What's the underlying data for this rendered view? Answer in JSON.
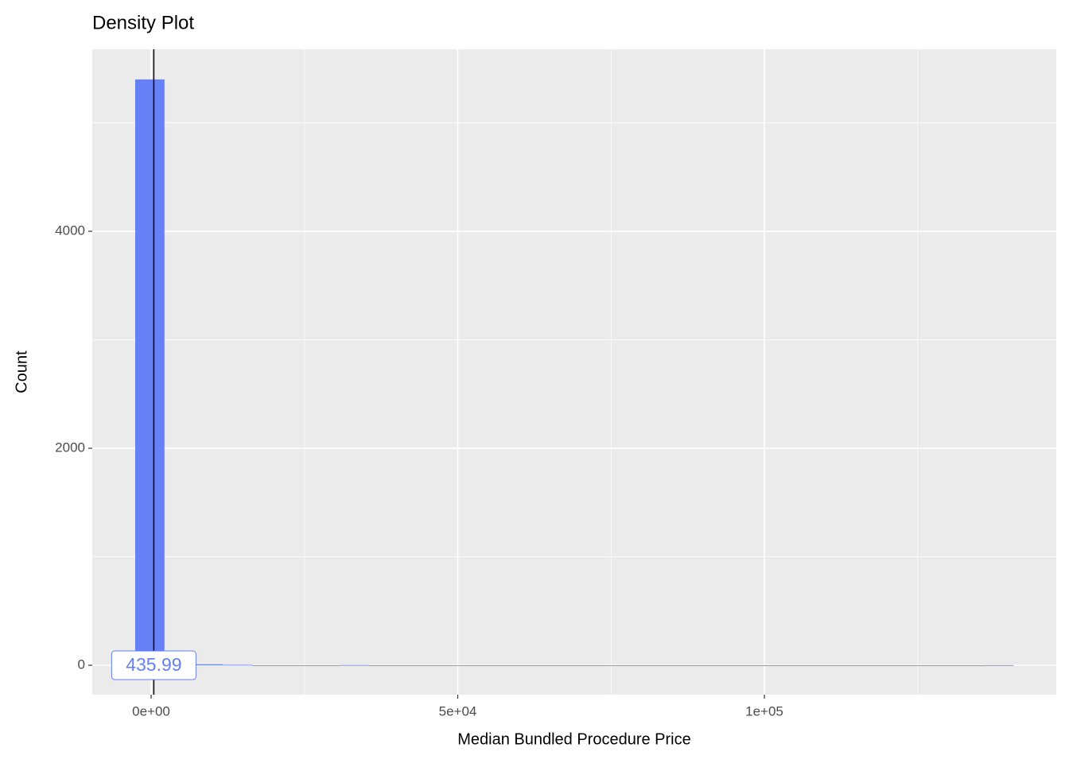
{
  "chart_data": {
    "type": "histogram",
    "title": "Density Plot",
    "x_label": "Median Bundled Procedure Price",
    "y_label": "Count",
    "bins": [
      -2600,
      2175,
      6950,
      11725,
      16500,
      21275,
      26050,
      30825,
      35600,
      40375,
      45150,
      49925,
      54700,
      59475,
      64250,
      69025,
      73800,
      78575,
      83350,
      88125,
      92900,
      97675,
      102450,
      107225,
      112000,
      116775,
      121550,
      126325,
      131100,
      135875,
      140650
    ],
    "values": [
      5400,
      10,
      9,
      4,
      0,
      0,
      0,
      2,
      0,
      0,
      0,
      0,
      0,
      0,
      0,
      0,
      0,
      0,
      0,
      0,
      0,
      0,
      0,
      0,
      0,
      0,
      0,
      0,
      0,
      1
    ],
    "color": "#6680F5",
    "vline": 435.99,
    "xlim": [
      -9600,
      147600
    ],
    "xticks": [
      {
        "value": 0,
        "label": "0e+00"
      },
      {
        "value": 50000,
        "label": "5e+04"
      },
      {
        "value": 100000,
        "label": "1e+05"
      }
    ],
    "ylim": [
      -271,
      5678
    ],
    "yticks": [
      0,
      2000,
      4000
    ],
    "grid": true
  }
}
